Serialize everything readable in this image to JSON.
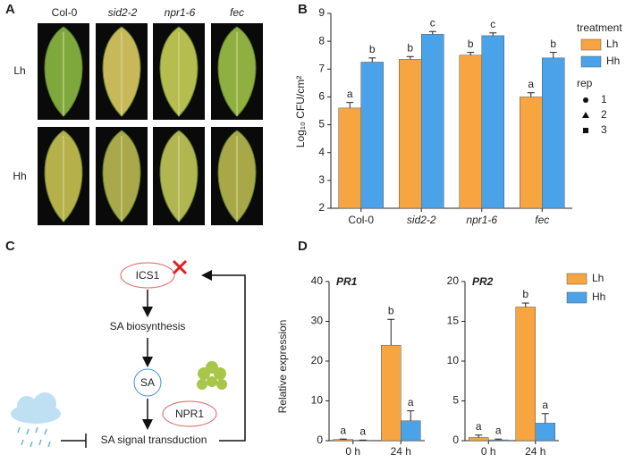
{
  "panels": [
    "A",
    "B",
    "C",
    "D"
  ],
  "leaf_panel": {
    "columns": [
      "Col-0",
      "sid2-2",
      "npr1-6",
      "fec"
    ],
    "rows": [
      "Lh",
      "Hh"
    ]
  },
  "diagram": {
    "nodes": [
      "ICS1",
      "SA biosynthesis",
      "SA",
      "NPR1",
      "SA signal transduction"
    ]
  },
  "chart_data": [
    {
      "type": "bar",
      "ylabel": "Log₁₀ CFU/cm²",
      "categories": [
        "Col-0",
        "sid2-2",
        "npr1-6",
        "fec"
      ],
      "ylim": [
        2,
        9
      ],
      "yticks": [
        2,
        3,
        4,
        5,
        6,
        7,
        8,
        9
      ],
      "legend_title": "treatment",
      "rep_legend": {
        "title": "rep",
        "items": [
          "1",
          "2",
          "3"
        ]
      },
      "series": [
        {
          "name": "Lh",
          "color": "#f7a541",
          "values": [
            5.6,
            7.35,
            7.5,
            6.0
          ],
          "errors": [
            0.2,
            0.1,
            0.1,
            0.15
          ],
          "annotations": [
            "a",
            "b",
            "b",
            "a"
          ]
        },
        {
          "name": "Hh",
          "color": "#4aa3e8",
          "values": [
            7.25,
            8.25,
            8.2,
            7.4
          ],
          "errors": [
            0.15,
            0.1,
            0.1,
            0.2
          ],
          "annotations": [
            "b",
            "c",
            "c",
            "b"
          ]
        }
      ]
    },
    {
      "type": "bar",
      "title": "PR1",
      "ylabel": "Relative expression",
      "categories": [
        "0 h",
        "24 h"
      ],
      "ylim": [
        0,
        40
      ],
      "yticks": [
        0,
        10,
        20,
        30,
        40
      ],
      "series": [
        {
          "name": "Lh",
          "color": "#f7a541",
          "values": [
            0.3,
            24
          ],
          "errors": [
            0.1,
            6.5
          ],
          "annotations": [
            "a",
            "b"
          ]
        },
        {
          "name": "Hh",
          "color": "#4aa3e8",
          "values": [
            0.1,
            5
          ],
          "errors": [
            0.05,
            2.5
          ],
          "annotations": [
            "a",
            "a"
          ]
        }
      ]
    },
    {
      "type": "bar",
      "title": "PR2",
      "categories": [
        "0 h",
        "24 h"
      ],
      "ylim": [
        0,
        20
      ],
      "yticks": [
        0,
        5,
        10,
        15,
        20
      ],
      "series": [
        {
          "name": "Lh",
          "color": "#f7a541",
          "values": [
            0.4,
            16.8
          ],
          "errors": [
            0.3,
            0.5
          ],
          "annotations": [
            "a",
            "b"
          ]
        },
        {
          "name": "Hh",
          "color": "#4aa3e8",
          "values": [
            0.1,
            2.2
          ],
          "errors": [
            0.1,
            1.2
          ],
          "annotations": [
            "a",
            "a"
          ]
        }
      ]
    }
  ]
}
